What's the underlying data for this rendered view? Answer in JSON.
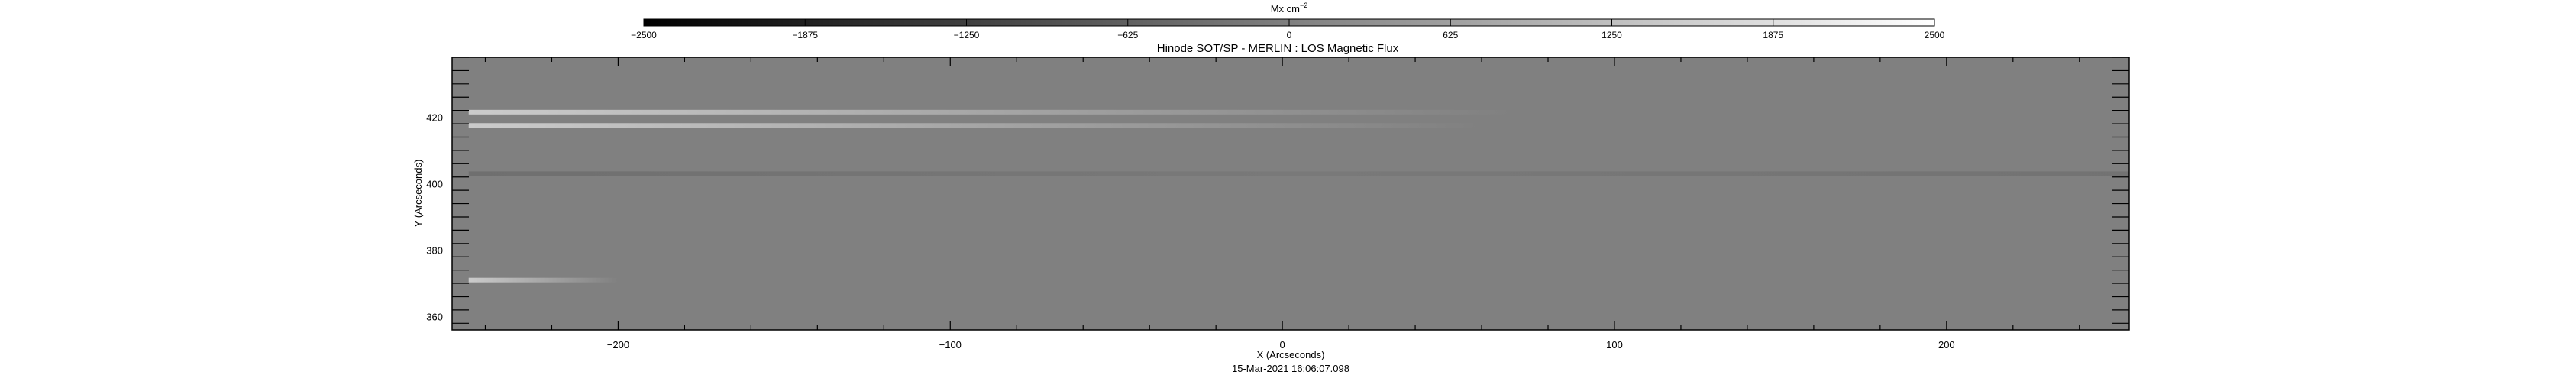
{
  "chart_data": {
    "type": "heatmap",
    "title": "Hinode SOT/SP - MERLIN : LOS Magnetic Flux",
    "xlabel": "X (Arcseconds)",
    "ylabel": "Y (Arcseconds)",
    "footer": "15-Mar-2021 16:06:07.098",
    "xlim": [
      -250,
      255
    ],
    "ylim": [
      356,
      438
    ],
    "x_ticks": [
      -200,
      -100,
      0,
      100,
      200
    ],
    "x_tick_labels": [
      "−200",
      "−100",
      "0",
      "100",
      "200"
    ],
    "y_ticks": [
      360,
      380,
      400,
      420
    ],
    "y_tick_labels": [
      "360",
      "380",
      "400",
      "420"
    ],
    "colorbar": {
      "unit_label": "Mx cm",
      "unit_exponent": "−2",
      "range": [
        -2500,
        2500
      ],
      "ticks": [
        -2500,
        -1875,
        -1250,
        -625,
        0,
        625,
        1250,
        1875,
        2500
      ],
      "tick_labels": [
        "−2500",
        "−1875",
        "−1250",
        "−625",
        "0",
        "625",
        "1250",
        "1875",
        "2500"
      ],
      "colormap": "grayscale"
    },
    "background_value": 0,
    "features": [
      {
        "x_start": -245,
        "x_end": 70,
        "y": 421.5,
        "value": 900
      },
      {
        "x_start": -245,
        "x_end": 60,
        "y": 417.5,
        "value": 700
      },
      {
        "x_start": -245,
        "x_end": 255,
        "y": 403,
        "value": -300
      },
      {
        "x_start": -245,
        "x_end": -200,
        "y": 371,
        "value": 500
      }
    ]
  }
}
